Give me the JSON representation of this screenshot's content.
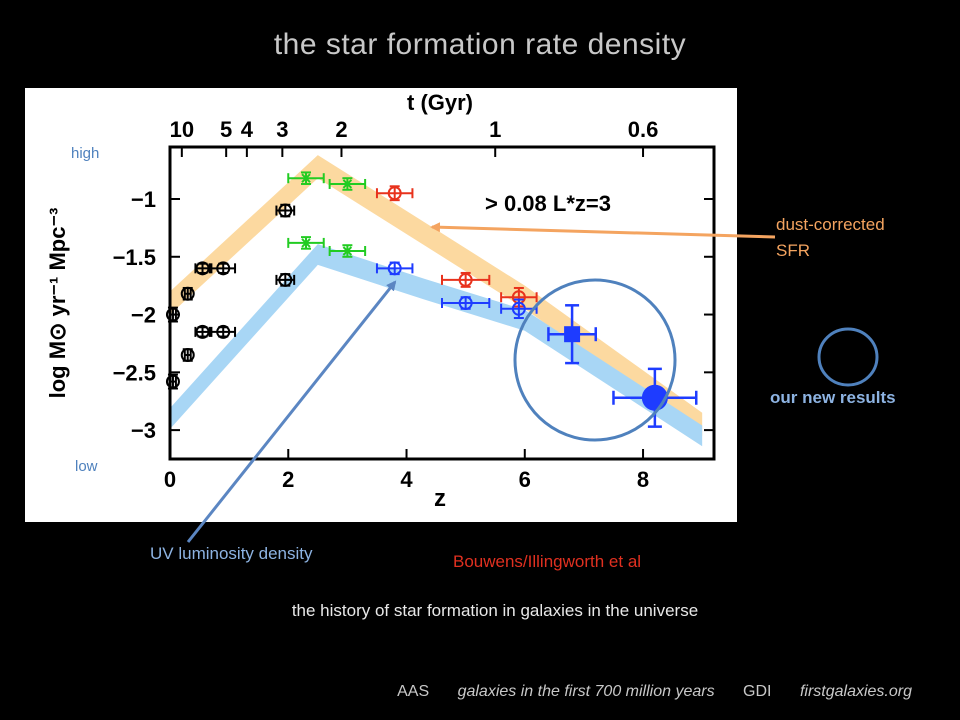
{
  "slide": {
    "title": "the star formation rate density",
    "subtitle": "the history of star formation in galaxies in the universe",
    "credit": "Bouwens/Illingworth et al"
  },
  "annotations": {
    "high": "high",
    "low": "low",
    "dust_line1": "dust-corrected",
    "dust_line2": "SFR",
    "uv": "UV luminosity density",
    "ours": "our new results"
  },
  "footer": {
    "aas": "AAS",
    "talk": "galaxies in the first 700 million years",
    "gdi": "GDI",
    "site": "firstgalaxies.org"
  },
  "colors": {
    "dust_band": "#fcd9a0",
    "uv_band": "#a8d6f5",
    "green": "#22cc22",
    "red": "#e8321c",
    "blue": "#1e3cff",
    "black": "#000000",
    "ellipse": "#4f81bd",
    "dust_arrow": "#f4a460",
    "uv_arrow": "#5b86c2"
  },
  "chart_data": {
    "type": "scatter",
    "xlabel": "z",
    "ylabel": "log M⊙ yr⁻¹ Mpc⁻³",
    "top_axis_label": "t (Gyr)",
    "top_ticks": [
      {
        "label": "10",
        "z": 0.2
      },
      {
        "label": "5",
        "z": 0.95
      },
      {
        "label": "4",
        "z": 1.3
      },
      {
        "label": "3",
        "z": 1.9
      },
      {
        "label": "2",
        "z": 2.9
      },
      {
        "label": "1",
        "z": 5.5
      },
      {
        "label": "0.6",
        "z": 8.0
      }
    ],
    "xlim": [
      0,
      9.2
    ],
    "ylim": [
      -3.25,
      -0.55
    ],
    "xticks": [
      0,
      2,
      4,
      6,
      8
    ],
    "yticks": [
      -1,
      -1.5,
      -2,
      -2.5,
      -3
    ],
    "ytick_labels": [
      "−1",
      "−1.5",
      "−2",
      "−2.5",
      "−3"
    ],
    "annotation": "> 0.08 L*z=3",
    "bands": [
      {
        "name": "dust",
        "points": [
          [
            0,
            -1.9
          ],
          [
            2.5,
            -0.72
          ],
          [
            4.3,
            -1.3
          ],
          [
            6,
            -1.85
          ],
          [
            9,
            -2.95
          ]
        ],
        "halfwidth": 0.1
      },
      {
        "name": "uv",
        "points": [
          [
            0,
            -2.9
          ],
          [
            2.5,
            -1.48
          ],
          [
            4.3,
            -1.78
          ],
          [
            6,
            -2.05
          ],
          [
            9,
            -3.05
          ]
        ],
        "halfwidth": 0.09
      }
    ],
    "series": [
      {
        "color": "green",
        "marker": "x",
        "points": [
          {
            "x": 2.3,
            "y": -0.82,
            "xerr": 0.3,
            "yerr": 0.05
          },
          {
            "x": 3.0,
            "y": -0.87,
            "xerr": 0.3,
            "yerr": 0.05
          },
          {
            "x": 2.3,
            "y": -1.38,
            "xerr": 0.3,
            "yerr": 0.05
          },
          {
            "x": 3.0,
            "y": -1.45,
            "xerr": 0.3,
            "yerr": 0.05
          }
        ]
      },
      {
        "color": "red",
        "marker": "circle",
        "points": [
          {
            "x": 3.8,
            "y": -0.95,
            "xerr": 0.3,
            "yerr": 0.06
          },
          {
            "x": 5.0,
            "y": -1.7,
            "xerr": 0.4,
            "yerr": 0.06
          },
          {
            "x": 5.9,
            "y": -1.85,
            "xerr": 0.3,
            "yerr": 0.08
          }
        ]
      },
      {
        "color": "blue",
        "marker": "circle",
        "points": [
          {
            "x": 3.8,
            "y": -1.6,
            "xerr": 0.3,
            "yerr": 0.05
          },
          {
            "x": 5.0,
            "y": -1.9,
            "xerr": 0.4,
            "yerr": 0.05
          },
          {
            "x": 5.9,
            "y": -1.95,
            "xerr": 0.3,
            "yerr": 0.08
          }
        ]
      },
      {
        "color": "black",
        "marker": "circle-plus",
        "points": [
          {
            "x": 0.05,
            "y": -2.0,
            "xerr": 0.05,
            "yerr": 0.06
          },
          {
            "x": 0.3,
            "y": -1.82,
            "xerr": 0.05,
            "yerr": 0.05
          },
          {
            "x": 0.55,
            "y": -1.6,
            "xerr": 0.12,
            "yerr": 0.04
          },
          {
            "x": 0.9,
            "y": -1.6,
            "xerr": 0.2,
            "yerr": 0.04
          },
          {
            "x": 0.05,
            "y": -2.58,
            "xerr": 0.05,
            "yerr": 0.06
          },
          {
            "x": 0.3,
            "y": -2.35,
            "xerr": 0.05,
            "yerr": 0.05
          },
          {
            "x": 0.55,
            "y": -2.15,
            "xerr": 0.12,
            "yerr": 0.04
          },
          {
            "x": 0.9,
            "y": -2.15,
            "xerr": 0.2,
            "yerr": 0.04
          },
          {
            "x": 1.95,
            "y": -1.1,
            "xerr": 0.15,
            "yerr": 0.05
          },
          {
            "x": 1.95,
            "y": -1.7,
            "xerr": 0.15,
            "yerr": 0.05
          }
        ]
      },
      {
        "color": "blue",
        "marker": "square",
        "points": [
          {
            "x": 6.8,
            "y": -2.17,
            "xerr": 0.4,
            "yerr": 0.25
          }
        ]
      },
      {
        "color": "blue",
        "marker": "big-circle",
        "points": [
          {
            "x": 8.2,
            "y": -2.72,
            "xerr": 0.7,
            "yerr": 0.25
          }
        ]
      }
    ]
  }
}
